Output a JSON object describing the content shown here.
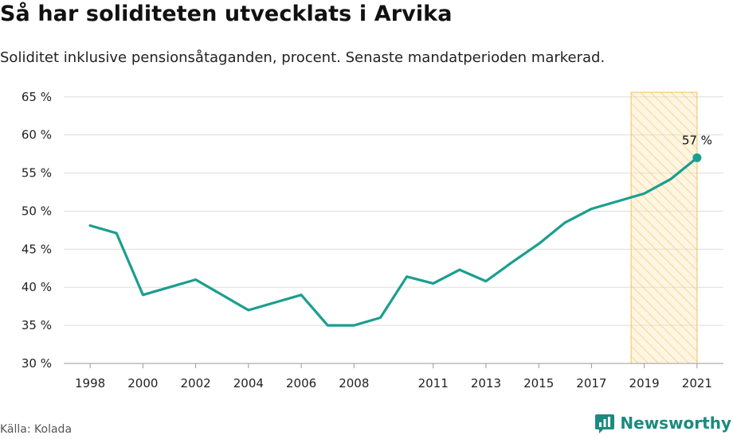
{
  "header": {
    "title": "Så har soliditeten utvecklats i Arvika",
    "subtitle": "Soliditet inklusive pensionsåtaganden, procent. Senaste mandatperioden markerad."
  },
  "footer": {
    "source": "Källa: Kolada",
    "brand": "Newsworthy"
  },
  "colors": {
    "line": "#1a9e8f",
    "highlight_fill": "#fbe3b0",
    "highlight_stroke": "#f2c25a",
    "grid": "#dddddd",
    "brand": "#1a8b7e"
  },
  "chart_data": {
    "type": "line",
    "x": [
      1998,
      1999,
      2000,
      2001,
      2002,
      2003,
      2004,
      2005,
      2006,
      2007,
      2008,
      2009,
      2010,
      2011,
      2012,
      2013,
      2014,
      2015,
      2016,
      2017,
      2018,
      2019,
      2020,
      2021
    ],
    "series": [
      {
        "values": [
          48.1,
          47.1,
          39.0,
          40.0,
          41.0,
          39.0,
          37.0,
          38.0,
          39.0,
          35.0,
          35.0,
          36.0,
          41.4,
          40.5,
          42.3,
          40.8,
          43.3,
          45.7,
          48.5,
          50.3,
          51.3,
          52.3,
          54.2,
          57.0
        ]
      }
    ],
    "x_ticks": [
      "1998",
      "2000",
      "2002",
      "2004",
      "2006",
      "2008",
      "2011",
      "2013",
      "2015",
      "2017",
      "2019",
      "2021"
    ],
    "y_ticks": [
      "30 %",
      "35 %",
      "40 %",
      "45 %",
      "50 %",
      "55 %",
      "60 %",
      "65 %"
    ],
    "ylim": [
      30,
      65.5
    ],
    "xlim": [
      1997,
      2022
    ],
    "highlight_range": [
      2018.5,
      2021
    ],
    "end_label": "57 %",
    "grid": "horizontal"
  }
}
